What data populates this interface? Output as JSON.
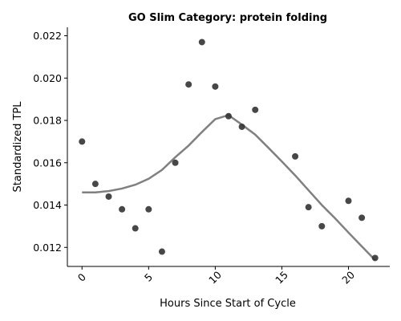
{
  "chart_data": {
    "type": "scatter",
    "title": "GO Slim Category: protein folding",
    "xlabel": "Hours Since Start of Cycle",
    "ylabel": "Standardized TPL",
    "xlim": [
      -1.1,
      23.1
    ],
    "ylim": [
      0.0111,
      0.0224
    ],
    "xticks": [
      0,
      5,
      10,
      15,
      20
    ],
    "xtick_labels": [
      "0",
      "5",
      "10",
      "15",
      "20"
    ],
    "yticks": [
      0.012,
      0.014,
      0.016,
      0.018,
      0.02,
      0.022
    ],
    "ytick_labels": [
      "0.012",
      "0.014",
      "0.016",
      "0.018",
      "0.020",
      "0.022"
    ],
    "grid": false,
    "legend": "none",
    "series": [
      {
        "kind": "points",
        "color": "#333333",
        "x": [
          0,
          1,
          2,
          3,
          4,
          5,
          6,
          7,
          8,
          9,
          10,
          11,
          12,
          13,
          16,
          17,
          18,
          20,
          21,
          22
        ],
        "y": [
          0.017,
          0.015,
          0.0144,
          0.0138,
          0.0129,
          0.0138,
          0.0118,
          0.016,
          0.0197,
          0.0217,
          0.0196,
          0.0182,
          0.0177,
          0.0185,
          0.0163,
          0.0139,
          0.013,
          0.0142,
          0.0134,
          0.0115
        ]
      },
      {
        "kind": "trend-line",
        "color": "#808080",
        "x": [
          0,
          1,
          2,
          3,
          4,
          5,
          6,
          7,
          8,
          9,
          10,
          11,
          12,
          13,
          14,
          15,
          16,
          17,
          18,
          19,
          20,
          21,
          22
        ],
        "y": [
          0.0146,
          0.0146,
          0.01466,
          0.01478,
          0.01496,
          0.01524,
          0.01566,
          0.01626,
          0.01681,
          0.01745,
          0.01806,
          0.01825,
          0.0178,
          0.01733,
          0.0167,
          0.01606,
          0.0154,
          0.0147,
          0.014,
          0.01337,
          0.0127,
          0.01205,
          0.0114
        ]
      }
    ]
  }
}
